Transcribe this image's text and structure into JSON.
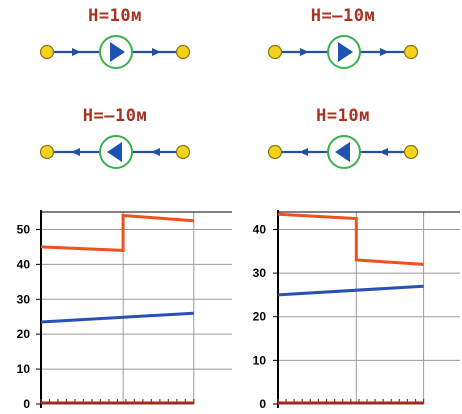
{
  "colors": {
    "label": "#a8331f",
    "pipe": "#23509f",
    "node_fill": "#f2d21a",
    "node_stroke": "#8c7410",
    "pump_ring": "#39b04a",
    "pump_arrow": "#1f52b4",
    "red_series": "#f0501c",
    "blue_series": "#2850b4",
    "baseline": "#a02a20",
    "grid": "#9a9a9a",
    "axis": "#000000"
  },
  "schemes": [
    {
      "label": "H=10м",
      "pump_direction": "right",
      "flow_direction": "right"
    },
    {
      "label": "H=–10м",
      "pump_direction": "right",
      "flow_direction": "right"
    },
    {
      "label": "H=–10м",
      "pump_direction": "left",
      "flow_direction": "left"
    },
    {
      "label": "H=10м",
      "pump_direction": "left",
      "flow_direction": "left"
    }
  ],
  "chart_data": [
    {
      "type": "line",
      "title": "",
      "xlabel": "",
      "ylabel": "",
      "ylim": [
        0,
        55
      ],
      "xlim": [
        0,
        10
      ],
      "y_ticks": [
        "0",
        "10",
        "20",
        "30",
        "40",
        "50"
      ],
      "x_gridlines": [
        0,
        4.3,
        8
      ],
      "grid": true,
      "series": [
        {
          "color": "red_series",
          "points": [
            [
              0,
              45
            ],
            [
              4.3,
              44
            ],
            [
              4.3,
              54
            ],
            [
              8,
              52.5
            ]
          ]
        },
        {
          "color": "blue_series",
          "points": [
            [
              0,
              23.5
            ],
            [
              8,
              26
            ]
          ]
        },
        {
          "color": "baseline",
          "points": [
            [
              0,
              0
            ],
            [
              8,
              0
            ]
          ],
          "style": "ticked"
        }
      ]
    },
    {
      "type": "line",
      "title": "",
      "xlabel": "",
      "ylabel": "",
      "ylim": [
        0,
        44
      ],
      "xlim": [
        0,
        10
      ],
      "y_ticks": [
        "0",
        "10",
        "20",
        "30",
        "40"
      ],
      "x_gridlines": [
        0,
        4.3,
        8
      ],
      "grid": true,
      "series": [
        {
          "color": "red_series",
          "points": [
            [
              0,
              43.5
            ],
            [
              4.3,
              42.5
            ],
            [
              4.3,
              33
            ],
            [
              8,
              32
            ]
          ]
        },
        {
          "color": "blue_series",
          "points": [
            [
              0,
              25
            ],
            [
              8,
              27
            ]
          ]
        },
        {
          "color": "baseline",
          "points": [
            [
              0,
              0
            ],
            [
              8,
              0
            ]
          ],
          "style": "ticked"
        }
      ]
    }
  ]
}
